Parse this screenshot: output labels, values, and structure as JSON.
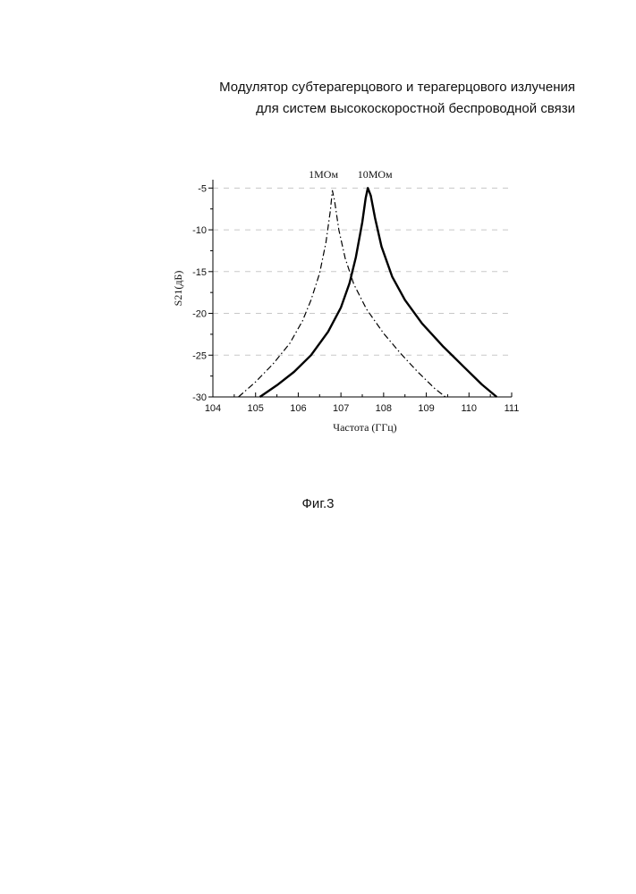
{
  "header": {
    "line1": "Модулятор субтерагерцового и терагерцового излучения",
    "line2": "для систем высокоскоростной беспроводной связи"
  },
  "caption": "Фиг.3",
  "chart_data": {
    "type": "line",
    "xlabel": "Частота (ГГц)",
    "ylabel": "S21(дБ)",
    "xlim": [
      104,
      111
    ],
    "ylim": [
      -30,
      -4
    ],
    "xticks": [
      104,
      105,
      106,
      107,
      108,
      109,
      110,
      111
    ],
    "yticks": [
      -5,
      -10,
      -15,
      -20,
      -25,
      -30
    ],
    "grid": "horizontal dashed",
    "series": [
      {
        "name": "1МОм",
        "style": "dash-dot",
        "x": [
          104.6,
          105.0,
          105.4,
          105.8,
          106.1,
          106.3,
          106.5,
          106.65,
          106.75,
          106.8,
          106.85,
          106.95,
          107.1,
          107.3,
          107.6,
          108.0,
          108.4,
          108.8,
          109.2,
          109.45
        ],
        "y": [
          -30.0,
          -28.2,
          -26.1,
          -23.6,
          -20.9,
          -18.4,
          -15.2,
          -11.5,
          -7.8,
          -5.3,
          -6.5,
          -10.0,
          -13.4,
          -16.5,
          -19.5,
          -22.4,
          -24.8,
          -27.0,
          -29.0,
          -30.0
        ]
      },
      {
        "name": "10МОм",
        "style": "solid",
        "x": [
          105.1,
          105.5,
          105.9,
          106.3,
          106.7,
          107.0,
          107.2,
          107.35,
          107.5,
          107.58,
          107.63,
          107.7,
          107.8,
          107.95,
          108.2,
          108.5,
          108.9,
          109.4,
          109.9,
          110.3,
          110.65
        ],
        "y": [
          -30.0,
          -28.6,
          -27.0,
          -25.0,
          -22.2,
          -19.3,
          -16.4,
          -13.3,
          -9.1,
          -6.2,
          -5.0,
          -5.9,
          -8.6,
          -12.0,
          -15.6,
          -18.4,
          -21.2,
          -24.0,
          -26.5,
          -28.5,
          -30.0
        ]
      }
    ]
  },
  "colors": {
    "line": "#000000",
    "grid": "#c8c8c8"
  }
}
